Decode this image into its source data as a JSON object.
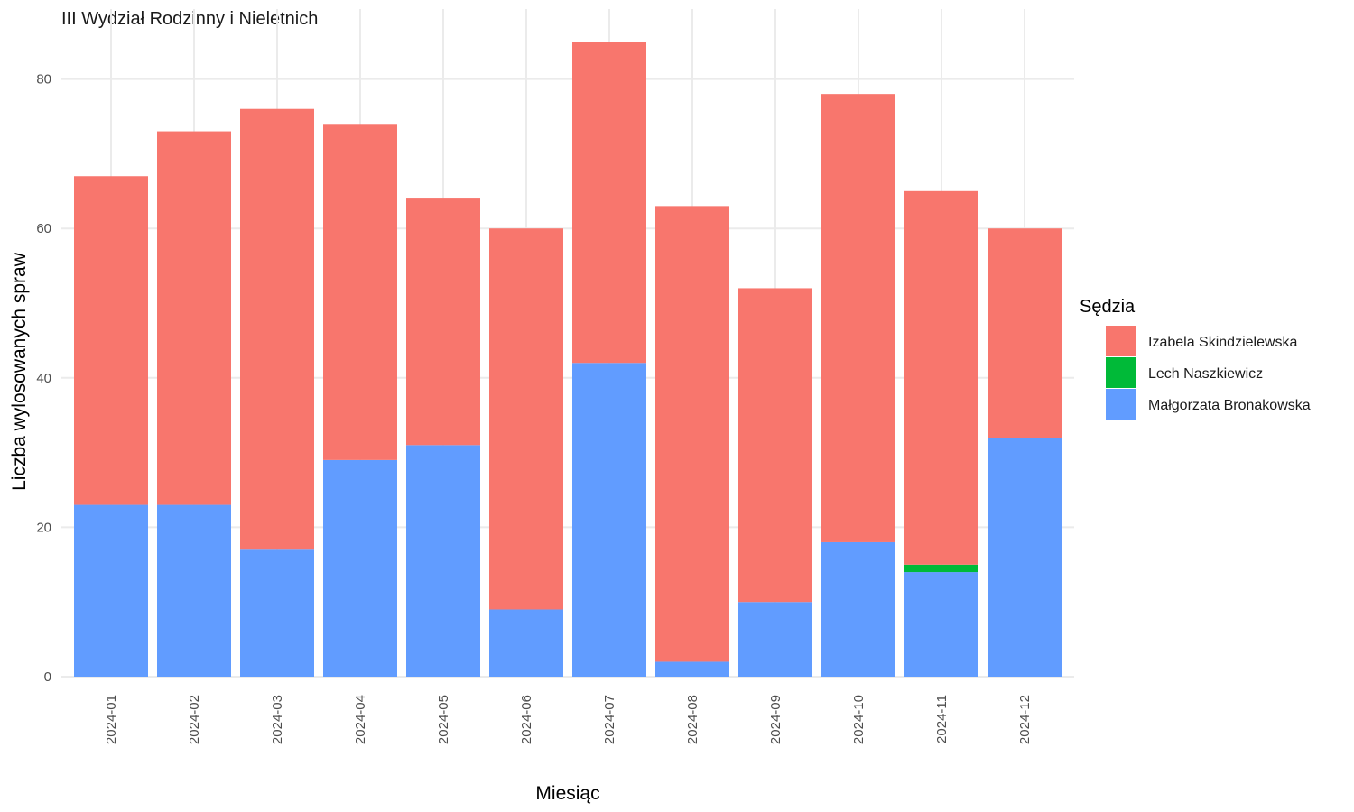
{
  "chart_data": {
    "type": "bar",
    "stacked": true,
    "title": "III Wydział Rodzinny i Nieletnich",
    "xlabel": "Miesiąc",
    "ylabel": "Liczba wylosowanych spraw",
    "categories": [
      "2024-01",
      "2024-02",
      "2024-03",
      "2024-04",
      "2024-05",
      "2024-06",
      "2024-07",
      "2024-08",
      "2024-09",
      "2024-10",
      "2024-11",
      "2024-12"
    ],
    "series": [
      {
        "name": "Małgorzata Bronakowska",
        "color": "#619CFF",
        "values": [
          23,
          23,
          17,
          29,
          31,
          9,
          42,
          2,
          10,
          18,
          14,
          32
        ]
      },
      {
        "name": "Lech Naszkiewicz",
        "color": "#00BA38",
        "values": [
          0,
          0,
          0,
          0,
          0,
          0,
          0,
          0,
          0,
          0,
          1,
          0
        ]
      },
      {
        "name": "Izabela Skindzielewska",
        "color": "#F8766D",
        "values": [
          44,
          50,
          59,
          45,
          33,
          51,
          43,
          61,
          42,
          60,
          50,
          28
        ]
      }
    ],
    "ylim": [
      0,
      85
    ],
    "yticks": [
      0,
      20,
      40,
      60,
      80
    ],
    "grid": true,
    "legend": {
      "title": "Sędzia",
      "position": "right",
      "items": [
        "Izabela Skindzielewska",
        "Lech Naszkiewicz",
        "Małgorzata Bronakowska"
      ]
    }
  }
}
